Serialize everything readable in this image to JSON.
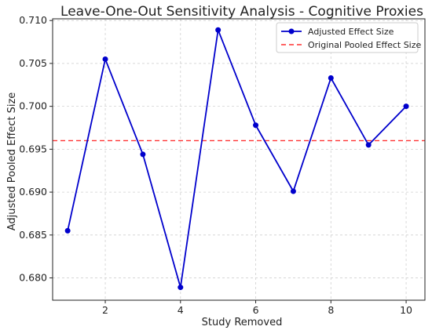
{
  "chart_data": {
    "type": "line",
    "title": "Leave-One-Out Sensitivity Analysis - Cognitive Proxies",
    "xlabel": "Study Removed",
    "ylabel": "Adjusted Pooled Effect Size",
    "x": [
      1,
      2,
      3,
      4,
      5,
      6,
      7,
      8,
      9,
      10
    ],
    "series": [
      {
        "name": "Adjusted Effect Size",
        "values": [
          0.6855,
          0.7055,
          0.6944,
          0.6789,
          0.7089,
          0.6978,
          0.6901,
          0.7033,
          0.6955,
          0.7
        ],
        "color": "#0000cc",
        "marker": "circle"
      }
    ],
    "reference_line": {
      "name": "Original Pooled Effect Size",
      "value": 0.696,
      "color": "#ff3333",
      "style": "dashed"
    },
    "xlim": [
      0.6,
      10.5
    ],
    "ylim": [
      0.6774,
      0.7102
    ],
    "x_ticks": [
      2,
      4,
      6,
      8,
      10
    ],
    "y_ticks": [
      0.68,
      0.685,
      0.69,
      0.695,
      0.7,
      0.705,
      0.71
    ],
    "y_tick_labels": [
      "0.680",
      "0.685",
      "0.690",
      "0.695",
      "0.700",
      "0.705",
      "0.710"
    ],
    "grid": true,
    "legend_position": "top-right"
  }
}
